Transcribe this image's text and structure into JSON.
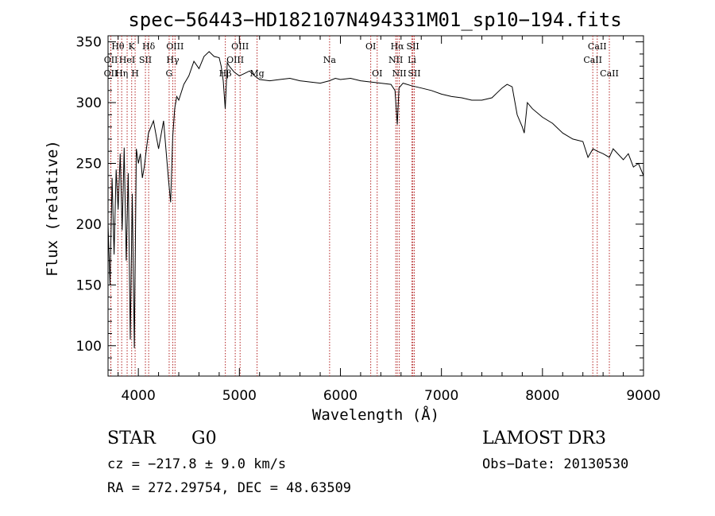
{
  "chart_data": {
    "type": "line",
    "title": "spec−56443−HD182107N494331M01_sp10−194.fits",
    "xlabel": "Wavelength (Å)",
    "ylabel": "Flux (relative)",
    "xlim": [
      3700,
      9000
    ],
    "ylim": [
      75,
      355
    ],
    "x_ticks": [
      4000,
      5000,
      6000,
      7000,
      8000,
      9000
    ],
    "y_ticks": [
      100,
      150,
      200,
      250,
      300,
      350
    ],
    "grid": false,
    "series": [
      {
        "name": "flux",
        "x": [
          3700,
          3720,
          3740,
          3760,
          3780,
          3800,
          3820,
          3840,
          3860,
          3880,
          3900,
          3920,
          3940,
          3960,
          3980,
          4000,
          4020,
          4040,
          4060,
          4080,
          4100,
          4150,
          4200,
          4250,
          4300,
          4320,
          4340,
          4360,
          4380,
          4400,
          4450,
          4500,
          4550,
          4600,
          4650,
          4700,
          4750,
          4800,
          4820,
          4840,
          4860,
          4880,
          4900,
          4950,
          5000,
          5050,
          5100,
          5150,
          5200,
          5300,
          5400,
          5500,
          5600,
          5700,
          5800,
          5890,
          5950,
          6000,
          6100,
          6200,
          6300,
          6400,
          6500,
          6540,
          6563,
          6580,
          6620,
          6700,
          6800,
          6900,
          7000,
          7100,
          7200,
          7300,
          7400,
          7500,
          7550,
          7600,
          7650,
          7700,
          7750,
          7800,
          7820,
          7850,
          7900,
          8000,
          8100,
          8200,
          8300,
          8400,
          8450,
          8500,
          8542,
          8600,
          8662,
          8700,
          8800,
          8850,
          8900,
          8950,
          9000
        ],
        "y": [
          200,
          150,
          238,
          175,
          245,
          212,
          258,
          195,
          263,
          170,
          242,
          105,
          225,
          98,
          262,
          250,
          258,
          238,
          248,
          262,
          275,
          285,
          262,
          285,
          235,
          218,
          272,
          295,
          305,
          302,
          315,
          322,
          334,
          328,
          338,
          342,
          338,
          337,
          330,
          318,
          295,
          333,
          330,
          325,
          322,
          324,
          326,
          322,
          319,
          318,
          319,
          320,
          318,
          317,
          316,
          318,
          320,
          319,
          320,
          318,
          317,
          316,
          315,
          310,
          282,
          312,
          316,
          314,
          312,
          310,
          307,
          305,
          304,
          302,
          302,
          304,
          308,
          312,
          315,
          313,
          290,
          280,
          275,
          300,
          295,
          288,
          283,
          275,
          270,
          268,
          255,
          262,
          260,
          258,
          255,
          262,
          253,
          258,
          247,
          250,
          240
        ]
      }
    ],
    "line_markers": [
      {
        "label": "O II",
        "text": "OII",
        "wavelength": 3727,
        "row": 2
      },
      {
        "label": "Hθ",
        "text": "Hθ",
        "wavelength": 3798,
        "row": 0
      },
      {
        "label": "O II",
        "text": "OII",
        "wavelength": 3728,
        "row": 1
      },
      {
        "label": "Hη",
        "text": "Hη",
        "wavelength": 3835,
        "row": 2
      },
      {
        "label": "He I",
        "text": "HeI",
        "wavelength": 3889,
        "row": 1
      },
      {
        "label": "K",
        "text": "K",
        "wavelength": 3934,
        "row": 0
      },
      {
        "label": "H",
        "text": "H",
        "wavelength": 3968,
        "row": 2
      },
      {
        "label": "S II",
        "text": "SII",
        "wavelength": 4070,
        "row": 1
      },
      {
        "label": "Hδ",
        "text": "Hδ",
        "wavelength": 4102,
        "row": 0
      },
      {
        "label": "G",
        "text": "G",
        "wavelength": 4305,
        "row": 2
      },
      {
        "label": "Hγ",
        "text": "Hγ",
        "wavelength": 4341,
        "row": 1
      },
      {
        "label": "O III",
        "text": "OIII",
        "wavelength": 4363,
        "row": 0
      },
      {
        "label": "Hβ",
        "text": "Hβ",
        "wavelength": 4861,
        "row": 2
      },
      {
        "label": "O III",
        "text": "OIII",
        "wavelength": 4959,
        "row": 1
      },
      {
        "label": "O III",
        "text": "OIII",
        "wavelength": 5007,
        "row": 0
      },
      {
        "label": "Mg",
        "text": "Mg",
        "wavelength": 5175,
        "row": 2
      },
      {
        "label": "Na",
        "text": "Na",
        "wavelength": 5893,
        "row": 1
      },
      {
        "label": "O I",
        "text": "OI",
        "wavelength": 6300,
        "row": 0
      },
      {
        "label": "O I",
        "text": "OI",
        "wavelength": 6364,
        "row": 2
      },
      {
        "label": "N II",
        "text": "NII",
        "wavelength": 6548,
        "row": 1
      },
      {
        "label": "Hα",
        "text": "Hα",
        "wavelength": 6563,
        "row": 0
      },
      {
        "label": "N II",
        "text": "NII",
        "wavelength": 6583,
        "row": 2
      },
      {
        "label": "S II",
        "text": "SII",
        "wavelength": 6717,
        "row": 0
      },
      {
        "label": "Li",
        "text": "Li",
        "wavelength": 6708,
        "row": 1
      },
      {
        "label": "S II",
        "text": "SII",
        "wavelength": 6731,
        "row": 2
      },
      {
        "label": "Ca II",
        "text": "CaII",
        "wavelength": 8498,
        "row": 1
      },
      {
        "label": "Ca II",
        "text": "CaII",
        "wavelength": 8542,
        "row": 0
      },
      {
        "label": "Ca II",
        "text": "CaII",
        "wavelength": 8662,
        "row": 2
      }
    ],
    "annotations": {
      "object_class": "STAR",
      "subclass": "G0",
      "survey": "LAMOST DR3",
      "redshift": "cz = −217.8 ± 9.0 km/s",
      "obs_date": "Obs−Date: 20130530",
      "coords": "RA = 272.29754, DEC =  48.63509"
    }
  },
  "colors": {
    "line": "#000000",
    "marker": "#b22222",
    "axis": "#000000",
    "background": "#ffffff"
  }
}
